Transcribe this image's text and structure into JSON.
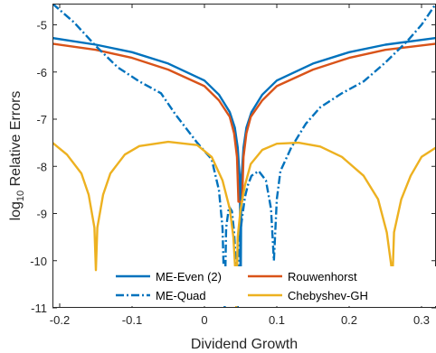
{
  "chart_data": {
    "type": "line",
    "title": "",
    "xlabel": "Dividend Growth",
    "ylabel_main": "log",
    "ylabel_sub": "10",
    "ylabel_rest": " Relative Errors",
    "xlim": [
      -0.21,
      0.32
    ],
    "ylim": [
      -11,
      -4.55
    ],
    "x_ticks": [
      -0.2,
      -0.1,
      0,
      0.1,
      0.2,
      0.3
    ],
    "x_tick_labels": [
      "-0.2",
      "-0.1",
      "0",
      "0.1",
      "0.2",
      "0.3"
    ],
    "y_ticks": [
      -5,
      -6,
      -7,
      -8,
      -9,
      -10,
      -11
    ],
    "y_tick_labels": [
      "-5",
      "-6",
      "-7",
      "-8",
      "-9",
      "-10",
      "-11"
    ],
    "grid": false,
    "legend_position": "bottom-center",
    "series": [
      {
        "name": "ME-Even (2)",
        "color": "#0072BD",
        "dash": "solid",
        "points": [
          [
            -0.21,
            -5.28
          ],
          [
            -0.15,
            -5.42
          ],
          [
            -0.1,
            -5.58
          ],
          [
            -0.05,
            -5.82
          ],
          [
            0,
            -6.18
          ],
          [
            0.02,
            -6.48
          ],
          [
            0.035,
            -6.85
          ],
          [
            0.042,
            -7.18
          ],
          [
            0.046,
            -7.6
          ],
          [
            0.049,
            -8.3
          ],
          [
            0.05,
            -10.9
          ],
          [
            0.051,
            -8.3
          ],
          [
            0.054,
            -7.6
          ],
          [
            0.058,
            -7.18
          ],
          [
            0.065,
            -6.85
          ],
          [
            0.08,
            -6.48
          ],
          [
            0.1,
            -6.18
          ],
          [
            0.15,
            -5.82
          ],
          [
            0.2,
            -5.58
          ],
          [
            0.25,
            -5.42
          ],
          [
            0.32,
            -5.28
          ]
        ]
      },
      {
        "name": "Rouwenhorst",
        "color": "#D95319",
        "dash": "solid",
        "points": [
          [
            -0.21,
            -5.4
          ],
          [
            -0.15,
            -5.53
          ],
          [
            -0.1,
            -5.7
          ],
          [
            -0.05,
            -5.95
          ],
          [
            0,
            -6.3
          ],
          [
            0.02,
            -6.6
          ],
          [
            0.035,
            -6.95
          ],
          [
            0.041,
            -7.3
          ],
          [
            0.045,
            -7.8
          ],
          [
            0.047,
            -8.75
          ],
          [
            0.052,
            -8.75
          ],
          [
            0.054,
            -7.8
          ],
          [
            0.058,
            -7.3
          ],
          [
            0.064,
            -6.95
          ],
          [
            0.08,
            -6.6
          ],
          [
            0.1,
            -6.3
          ],
          [
            0.15,
            -5.95
          ],
          [
            0.2,
            -5.7
          ],
          [
            0.25,
            -5.53
          ],
          [
            0.32,
            -5.4
          ]
        ]
      },
      {
        "name": "ME-Quad",
        "color": "#0072BD",
        "dash": "dashdot",
        "points": [
          [
            -0.21,
            -4.55
          ],
          [
            -0.18,
            -4.95
          ],
          [
            -0.15,
            -5.45
          ],
          [
            -0.12,
            -5.9
          ],
          [
            -0.09,
            -6.2
          ],
          [
            -0.06,
            -6.45
          ],
          [
            -0.04,
            -6.9
          ],
          [
            -0.01,
            -7.5
          ],
          [
            0.01,
            -7.85
          ],
          [
            0.02,
            -8.5
          ],
          [
            0.025,
            -9.3
          ],
          [
            0.028,
            -11
          ],
          [
            0.03,
            -9.3
          ],
          [
            0.034,
            -8.85
          ],
          [
            0.038,
            -8.95
          ],
          [
            0.041,
            -9.4
          ],
          [
            0.044,
            -10.2
          ],
          [
            0.046,
            -11
          ],
          [
            0.048,
            -9.6
          ],
          [
            0.052,
            -9.1
          ],
          [
            0.056,
            -8.65
          ],
          [
            0.06,
            -8.4
          ],
          [
            0.065,
            -8.2
          ],
          [
            0.075,
            -8.1
          ],
          [
            0.085,
            -8.3
          ],
          [
            0.092,
            -8.9
          ],
          [
            0.096,
            -10
          ],
          [
            0.1,
            -8.7
          ],
          [
            0.105,
            -8.1
          ],
          [
            0.12,
            -7.6
          ],
          [
            0.14,
            -7.1
          ],
          [
            0.16,
            -6.75
          ],
          [
            0.19,
            -6.45
          ],
          [
            0.22,
            -6.2
          ],
          [
            0.25,
            -5.8
          ],
          [
            0.28,
            -5.35
          ],
          [
            0.3,
            -5.0
          ],
          [
            0.32,
            -4.55
          ]
        ]
      },
      {
        "name": "Chebyshev-GH",
        "color": "#EDB120",
        "dash": "solid",
        "points": [
          [
            -0.21,
            -7.5
          ],
          [
            -0.19,
            -7.75
          ],
          [
            -0.17,
            -8.15
          ],
          [
            -0.16,
            -8.6
          ],
          [
            -0.152,
            -9.3
          ],
          [
            -0.15,
            -10.2
          ],
          [
            -0.148,
            -9.3
          ],
          [
            -0.14,
            -8.6
          ],
          [
            -0.13,
            -8.15
          ],
          [
            -0.11,
            -7.75
          ],
          [
            -0.09,
            -7.57
          ],
          [
            -0.05,
            -7.48
          ],
          [
            -0.01,
            -7.55
          ],
          [
            0.01,
            -7.8
          ],
          [
            0.025,
            -8.3
          ],
          [
            0.035,
            -8.9
          ],
          [
            0.04,
            -9.5
          ],
          [
            0.043,
            -10.3
          ],
          [
            0.044,
            -11
          ],
          [
            0.046,
            -9.5
          ],
          [
            0.05,
            -8.9
          ],
          [
            0.056,
            -8.4
          ],
          [
            0.064,
            -7.95
          ],
          [
            0.08,
            -7.65
          ],
          [
            0.1,
            -7.52
          ],
          [
            0.13,
            -7.5
          ],
          [
            0.16,
            -7.58
          ],
          [
            0.19,
            -7.8
          ],
          [
            0.22,
            -8.2
          ],
          [
            0.24,
            -8.7
          ],
          [
            0.252,
            -9.4
          ],
          [
            0.259,
            -10.2
          ],
          [
            0.26,
            -10.3
          ],
          [
            0.262,
            -9.4
          ],
          [
            0.272,
            -8.7
          ],
          [
            0.285,
            -8.2
          ],
          [
            0.3,
            -7.8
          ],
          [
            0.32,
            -7.6
          ]
        ]
      }
    ]
  }
}
